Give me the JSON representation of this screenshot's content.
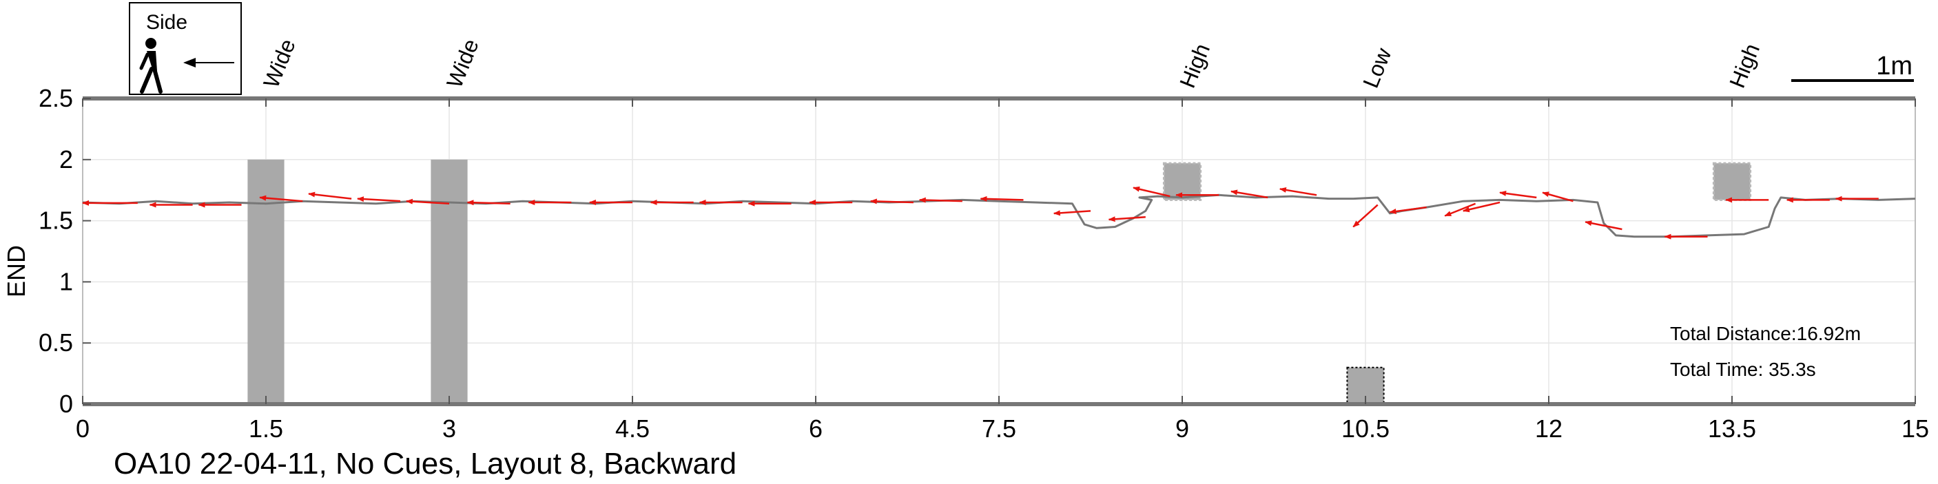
{
  "chart_data": {
    "type": "line",
    "title": "OA10 22-04-11, No Cues, Layout 8, Backward",
    "xlabel": "",
    "ylabel": "END",
    "xlim": [
      0,
      15
    ],
    "ylim": [
      0,
      2.5
    ],
    "x_ticks": [
      0,
      1.5,
      3,
      4.5,
      6,
      7.5,
      9,
      10.5,
      12,
      13.5,
      15
    ],
    "x_tick_labels": [
      "0",
      "1.5",
      "3",
      "4.5",
      "6",
      "7.5",
      "9",
      "10.5",
      "12",
      "13.5",
      "15"
    ],
    "y_ticks": [
      0,
      0.5,
      1,
      1.5,
      2,
      2.5
    ],
    "y_tick_labels": [
      "0",
      "0.5",
      "1",
      "1.5",
      "2",
      "2.5"
    ],
    "grid": true,
    "legend_box_title": "Side",
    "scale_bar_label": "1m",
    "obstacle_labels": [
      "Wide",
      "Wide",
      "High",
      "Low",
      "High"
    ],
    "obstacles": [
      {
        "label": "Wide",
        "x_start": 1.35,
        "x_end": 1.65,
        "y_start": 0,
        "y_end": 2.0
      },
      {
        "label": "Wide",
        "x_start": 2.85,
        "x_end": 3.15,
        "y_start": 0,
        "y_end": 2.0
      },
      {
        "label": "High",
        "x_start": 8.85,
        "x_end": 9.15,
        "y_start": 1.67,
        "y_end": 1.97
      },
      {
        "label": "Low",
        "x_start": 10.35,
        "x_end": 10.65,
        "y_start": 0,
        "y_end": 0.3
      },
      {
        "label": "High",
        "x_start": 13.35,
        "x_end": 13.65,
        "y_start": 1.67,
        "y_end": 1.97
      }
    ],
    "annotations": [
      "Total Distance:16.92m",
      "Total Time: 35.3s"
    ],
    "series": [
      {
        "color": "#777777",
        "x": [
          0,
          0.3,
          0.6,
          0.9,
          1.2,
          1.5,
          1.8,
          2.1,
          2.4,
          2.7,
          3.0,
          3.3,
          3.6,
          3.9,
          4.2,
          4.5,
          4.8,
          5.1,
          5.4,
          5.7,
          6.0,
          6.3,
          6.6,
          6.9,
          7.2,
          7.5,
          7.8,
          8.1,
          8.2,
          8.3,
          8.45,
          8.6,
          8.7,
          8.75,
          8.65,
          8.8,
          9.0,
          9.3,
          9.6,
          9.9,
          10.2,
          10.4,
          10.6,
          10.7,
          10.8,
          11.0,
          11.3,
          11.6,
          11.9,
          12.2,
          12.4,
          12.45,
          12.55,
          12.7,
          13.0,
          13.3,
          13.6,
          13.8,
          13.85,
          13.9,
          14.1,
          14.4,
          14.7,
          15.0
        ],
        "y": [
          1.65,
          1.64,
          1.66,
          1.64,
          1.65,
          1.64,
          1.66,
          1.65,
          1.64,
          1.66,
          1.65,
          1.64,
          1.66,
          1.65,
          1.64,
          1.66,
          1.65,
          1.64,
          1.66,
          1.65,
          1.64,
          1.66,
          1.65,
          1.66,
          1.67,
          1.66,
          1.65,
          1.64,
          1.47,
          1.44,
          1.45,
          1.52,
          1.58,
          1.67,
          1.69,
          1.7,
          1.69,
          1.71,
          1.69,
          1.7,
          1.68,
          1.68,
          1.69,
          1.56,
          1.58,
          1.61,
          1.66,
          1.67,
          1.66,
          1.67,
          1.65,
          1.48,
          1.38,
          1.37,
          1.37,
          1.38,
          1.39,
          1.45,
          1.6,
          1.69,
          1.67,
          1.68,
          1.67,
          1.68
        ]
      }
    ],
    "heading_arrows": [
      {
        "x": 0.45,
        "y": 1.645,
        "dx": -0.45,
        "dy": 0.0
      },
      {
        "x": 0.9,
        "y": 1.63,
        "dx": -0.35,
        "dy": 0.0
      },
      {
        "x": 1.3,
        "y": 1.63,
        "dx": -0.35,
        "dy": 0.0
      },
      {
        "x": 1.8,
        "y": 1.66,
        "dx": -0.35,
        "dy": 0.03
      },
      {
        "x": 2.2,
        "y": 1.68,
        "dx": -0.35,
        "dy": 0.04
      },
      {
        "x": 2.6,
        "y": 1.66,
        "dx": -0.35,
        "dy": 0.02
      },
      {
        "x": 3.0,
        "y": 1.64,
        "dx": -0.35,
        "dy": 0.02
      },
      {
        "x": 3.5,
        "y": 1.64,
        "dx": -0.35,
        "dy": 0.01
      },
      {
        "x": 4.0,
        "y": 1.65,
        "dx": -0.35,
        "dy": 0.0
      },
      {
        "x": 4.5,
        "y": 1.65,
        "dx": -0.35,
        "dy": 0.0
      },
      {
        "x": 5.0,
        "y": 1.65,
        "dx": -0.35,
        "dy": 0.0
      },
      {
        "x": 5.4,
        "y": 1.65,
        "dx": -0.35,
        "dy": 0.0
      },
      {
        "x": 5.8,
        "y": 1.64,
        "dx": -0.35,
        "dy": 0.0
      },
      {
        "x": 6.3,
        "y": 1.65,
        "dx": -0.35,
        "dy": 0.0
      },
      {
        "x": 6.8,
        "y": 1.65,
        "dx": -0.35,
        "dy": 0.01
      },
      {
        "x": 7.2,
        "y": 1.66,
        "dx": -0.35,
        "dy": 0.01
      },
      {
        "x": 7.7,
        "y": 1.67,
        "dx": -0.35,
        "dy": 0.01
      },
      {
        "x": 8.25,
        "y": 1.58,
        "dx": -0.3,
        "dy": -0.02
      },
      {
        "x": 8.7,
        "y": 1.53,
        "dx": -0.3,
        "dy": -0.02
      },
      {
        "x": 8.9,
        "y": 1.7,
        "dx": -0.3,
        "dy": 0.07
      },
      {
        "x": 9.3,
        "y": 1.71,
        "dx": -0.35,
        "dy": 0.0
      },
      {
        "x": 9.7,
        "y": 1.69,
        "dx": -0.3,
        "dy": 0.05
      },
      {
        "x": 10.1,
        "y": 1.71,
        "dx": -0.3,
        "dy": 0.05
      },
      {
        "x": 10.6,
        "y": 1.63,
        "dx": -0.2,
        "dy": -0.18
      },
      {
        "x": 11.0,
        "y": 1.61,
        "dx": -0.3,
        "dy": -0.04
      },
      {
        "x": 11.4,
        "y": 1.64,
        "dx": -0.25,
        "dy": -0.1
      },
      {
        "x": 11.6,
        "y": 1.65,
        "dx": -0.3,
        "dy": -0.07
      },
      {
        "x": 11.9,
        "y": 1.69,
        "dx": -0.3,
        "dy": 0.04
      },
      {
        "x": 12.2,
        "y": 1.66,
        "dx": -0.25,
        "dy": 0.07
      },
      {
        "x": 12.6,
        "y": 1.43,
        "dx": -0.3,
        "dy": 0.06
      },
      {
        "x": 13.3,
        "y": 1.37,
        "dx": -0.35,
        "dy": 0.0
      },
      {
        "x": 13.8,
        "y": 1.67,
        "dx": -0.35,
        "dy": 0.0
      },
      {
        "x": 14.3,
        "y": 1.67,
        "dx": -0.35,
        "dy": 0.0
      },
      {
        "x": 14.7,
        "y": 1.68,
        "dx": -0.35,
        "dy": 0.0
      }
    ]
  }
}
